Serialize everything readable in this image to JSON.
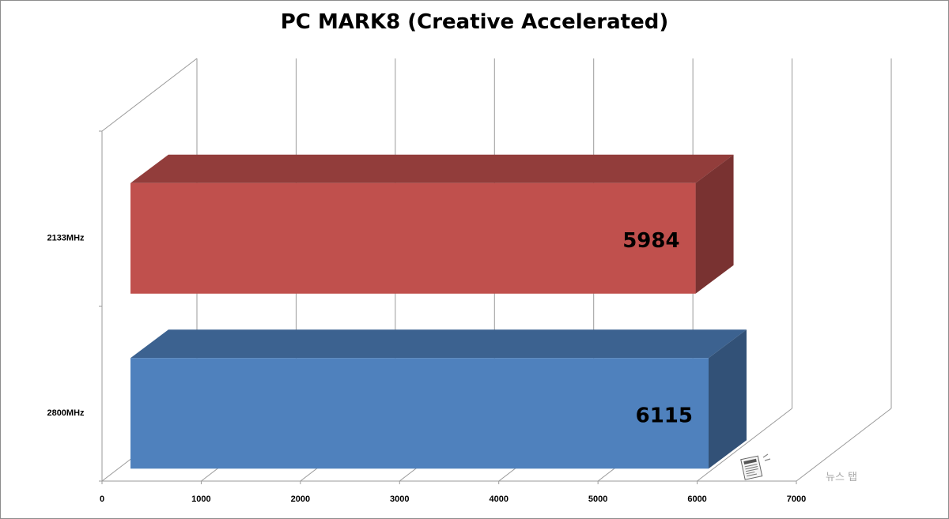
{
  "chart_data": {
    "type": "bar",
    "orientation": "horizontal",
    "style": "3d",
    "title": "PC MARK8 (Creative Accelerated)",
    "categories": [
      "2133MHz",
      "2800MHz"
    ],
    "series": [
      {
        "values": [
          5984,
          6115
        ],
        "colors": [
          "#C0504D",
          "#4F81BD"
        ]
      }
    ],
    "data_labels": [
      "5984",
      "6115"
    ],
    "xlim": [
      0,
      7000
    ],
    "x_ticks": [
      "0",
      "1000",
      "2000",
      "3000",
      "4000",
      "5000",
      "6000",
      "7000"
    ],
    "grid": true,
    "legend": "none"
  },
  "watermark": {
    "text": "뉴스 탭",
    "icon": "newspaper-icon"
  }
}
